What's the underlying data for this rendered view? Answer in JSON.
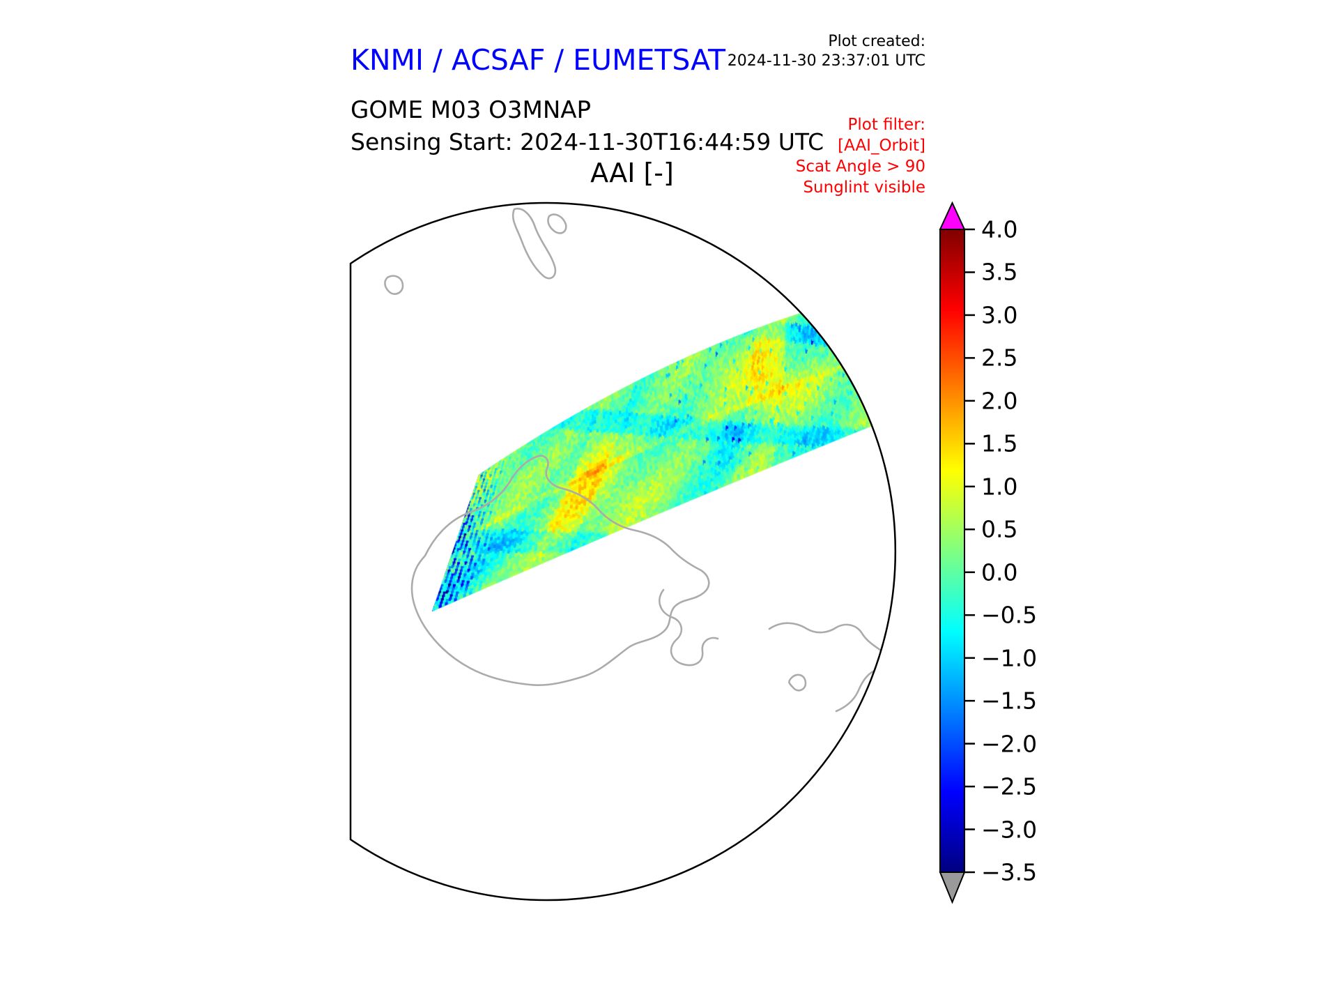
{
  "header": {
    "title": "KNMI / ACSAF / EUMETSAT",
    "title_color": "#0000ff",
    "plot_created_label": "Plot created:",
    "plot_created_value": "2024-11-30 23:37:01 UTC",
    "product_line": "GOME M03 O3MNAP",
    "sensing_line": "Sensing Start: 2024-11-30T16:44:59 UTC",
    "variable_label": "AAI [-]",
    "filter_color": "#ff0000",
    "filter_lines": [
      "Plot filter:",
      "[AAI_Orbit]",
      "Scat Angle > 90",
      "Sunglint visible"
    ]
  },
  "chart_data": {
    "type": "heatmap",
    "title": "AAI [-]",
    "description": "South-polar map view (circular boundary clipped flat on the left) showing one satellite orbit swath of Absorbing Aerosol Index data crossing diagonally from lower-left to upper-right. Swath values are mostly near 0 (green) with yellow patches near +1, cyan patches near -1, and dark-blue streaks down to about -3 at the swath's lower-left end. Gray coastlines (Antarctica in the center, island/continent fragments top and lower-right) on a white background.",
    "legend_position": "right vertical colorbar",
    "colorbar": {
      "colormap": "jet",
      "vmin": -3.5,
      "vmax": 4.0,
      "tick_values": [
        4.0,
        3.5,
        3.0,
        2.5,
        2.0,
        1.5,
        1.0,
        0.5,
        0.0,
        -0.5,
        -1.0,
        -1.5,
        -2.0,
        -2.5,
        -3.0,
        -3.5
      ],
      "tick_labels": [
        "4.0",
        "3.5",
        "3.0",
        "2.5",
        "2.0",
        "1.5",
        "1.0",
        "0.5",
        "0.0",
        "−0.5",
        "−1.0",
        "−1.5",
        "−2.0",
        "−2.5",
        "−3.0",
        "−3.5"
      ],
      "over_arrow_color": "#ff00ff",
      "under_arrow_color": "#9a9a9a",
      "gradient_stops": [
        {
          "offset": 0.0,
          "color": "#000080"
        },
        {
          "offset": 0.125,
          "color": "#0000ff"
        },
        {
          "offset": 0.25,
          "color": "#0080ff"
        },
        {
          "offset": 0.375,
          "color": "#00ffff"
        },
        {
          "offset": 0.5,
          "color": "#80ff80"
        },
        {
          "offset": 0.625,
          "color": "#ffff00"
        },
        {
          "offset": 0.75,
          "color": "#ff8000"
        },
        {
          "offset": 0.875,
          "color": "#ff0000"
        },
        {
          "offset": 1.0,
          "color": "#800000"
        }
      ]
    },
    "map": {
      "boundary_color": "#000000",
      "coastline_color": "#ababab",
      "background": "#ffffff"
    },
    "swath_stats": {
      "dominant_value": 0.0,
      "typical_range": [
        -1.0,
        1.2
      ],
      "low_extreme_streaks": -3.0
    }
  }
}
